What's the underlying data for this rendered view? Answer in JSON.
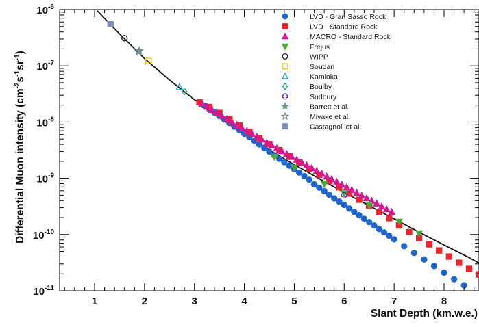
{
  "chart_data": {
    "type": "scatter",
    "title": "",
    "xlabel": "Slant Depth (km.w.e.)",
    "ylabel_parts": {
      "text": "Differential Muon intensity (cm",
      "sup1": "-2",
      "mid": "s",
      "sup2": "-1",
      "mid2": "sr",
      "sup3": "-1",
      "end": ")"
    },
    "xlim": [
      0.3,
      8.7
    ],
    "ylim_log10": [
      -11,
      -6
    ],
    "yscale": "log",
    "grid": false,
    "legend_position": "top-right",
    "x_ticks": [
      1,
      2,
      3,
      4,
      5,
      6,
      7,
      8
    ],
    "y_ticks": [
      {
        "exp": -6,
        "base": "10",
        "sup": "-6"
      },
      {
        "exp": -7,
        "base": "10",
        "sup": "-7"
      },
      {
        "exp": -8,
        "base": "10",
        "sup": "-8"
      },
      {
        "exp": -9,
        "base": "10",
        "sup": "-9"
      },
      {
        "exp": -10,
        "base": "10",
        "sup": "-10"
      },
      {
        "exp": -11,
        "base": "10",
        "sup": "-11"
      }
    ],
    "fit_curve": {
      "x": [
        1.05,
        1.5,
        2.0,
        2.5,
        3.0,
        3.5,
        4.0,
        4.5,
        5.0,
        5.5,
        6.0,
        6.5,
        7.0,
        7.5,
        8.0,
        8.5,
        8.7
      ],
      "y": [
        9.6e-07,
        3.7e-07,
        1.35e-07,
        5.6e-08,
        2.5e-08,
        1.2e-08,
        6e-09,
        3.2e-09,
        1.75e-09,
        9.8e-10,
        5.6e-10,
        3.25e-10,
        1.9e-10,
        1.1e-10,
        6.5e-11,
        3.9e-11,
        3.1e-11
      ]
    },
    "series": [
      {
        "name": "LVD - Gran Sasso Rock",
        "marker": "circle",
        "filled": true,
        "color": "#1f66c8",
        "x": [
          3.2,
          3.3,
          3.4,
          3.5,
          3.6,
          3.7,
          3.8,
          3.9,
          4.0,
          4.1,
          4.2,
          4.3,
          4.4,
          4.5,
          4.6,
          4.7,
          4.8,
          4.9,
          5.0,
          5.1,
          5.2,
          5.3,
          5.4,
          5.5,
          5.6,
          5.7,
          5.8,
          5.9,
          6.0,
          6.1,
          6.2,
          6.3,
          6.4,
          6.5,
          6.6,
          6.7,
          6.8,
          6.9,
          7.0,
          7.2,
          7.4,
          7.6,
          7.8,
          8.0,
          8.2,
          8.4
        ],
        "y": [
          1.95e-08,
          1.7e-08,
          1.48e-08,
          1.28e-08,
          1.11e-08,
          9.6e-09,
          8.3e-09,
          7.2e-09,
          6.2e-09,
          5.4e-09,
          4.65e-09,
          4e-09,
          3.45e-09,
          2.98e-09,
          2.57e-09,
          2.22e-09,
          1.93e-09,
          1.68e-09,
          1.45e-09,
          1.26e-09,
          1.09e-09,
          9.4e-10,
          7.8e-10,
          6.8e-10,
          5.9e-10,
          5.1e-10,
          4.4e-10,
          3.85e-10,
          3.35e-10,
          2.9e-10,
          2.52e-10,
          2.2e-10,
          1.9e-10,
          1.66e-10,
          1.44e-10,
          1.25e-10,
          1.09e-10,
          9.5e-11,
          8.2e-11,
          6.2e-11,
          4.7e-11,
          3.6e-11,
          2.75e-11,
          2.1e-11,
          1.6e-11,
          1.25e-11
        ]
      },
      {
        "name": "LVD - Standard Rock",
        "marker": "square",
        "filled": true,
        "color": "#e8242c",
        "x": [
          3.1,
          3.3,
          3.5,
          3.7,
          3.9,
          4.1,
          4.3,
          4.5,
          4.7,
          4.9,
          5.1,
          5.3,
          5.5,
          5.7,
          5.9,
          6.1,
          6.3,
          6.5,
          6.7,
          6.9,
          7.1,
          7.3,
          7.5,
          7.7,
          7.9,
          8.1,
          8.3,
          8.5,
          8.7
        ],
        "y": [
          2.25e-08,
          1.85e-08,
          1.45e-08,
          1.12e-08,
          8.7e-09,
          6.7e-09,
          5.2e-09,
          4.05e-09,
          3.15e-09,
          2.45e-09,
          1.9e-09,
          1.48e-09,
          1.15e-09,
          8.9e-10,
          6.9e-10,
          5.35e-10,
          4.15e-10,
          3.25e-10,
          2.5e-10,
          1.95e-10,
          1.45e-10,
          1.1e-10,
          8.6e-11,
          6.7e-11,
          5.2e-11,
          4.05e-11,
          3.15e-11,
          2.45e-11,
          1.95e-11
        ]
      },
      {
        "name": "MACRO - Standard Rock",
        "marker": "triangle",
        "filled": true,
        "color": "#d6198f",
        "x": [
          3.15,
          3.25,
          3.35,
          3.45,
          3.55,
          3.65,
          3.75,
          3.85,
          3.95,
          4.05,
          4.15,
          4.25,
          4.35,
          4.45,
          4.55,
          4.65,
          4.75,
          4.85,
          4.95,
          5.05,
          5.15,
          5.25,
          5.35,
          5.45,
          5.55,
          5.65,
          5.75,
          5.85,
          5.95,
          6.05,
          6.15,
          6.25,
          6.35,
          6.45,
          6.55,
          6.65,
          6.75,
          6.85,
          6.95
        ],
        "y": [
          2.1e-08,
          1.86e-08,
          1.64e-08,
          1.45e-08,
          1.28e-08,
          1.13e-08,
          1e-08,
          8.85e-09,
          7.85e-09,
          6.95e-09,
          6.15e-09,
          5.45e-09,
          4.85e-09,
          4.3e-09,
          3.82e-09,
          3.4e-09,
          3.02e-09,
          2.69e-09,
          2.39e-09,
          2.13e-09,
          1.9e-09,
          1.69e-09,
          1.51e-09,
          1.35e-09,
          1.2e-09,
          1.07e-09,
          9.6e-10,
          8.6e-10,
          7.7e-10,
          6.9e-10,
          6.15e-10,
          5.5e-10,
          4.9e-10,
          4.4e-10,
          3.95e-10,
          3.55e-10,
          3.15e-10,
          2.8e-10,
          2.5e-10
        ]
      },
      {
        "name": "Frejus",
        "marker": "triangle-down",
        "filled": true,
        "color": "#4caa3c",
        "x": [
          4.6,
          5.0,
          5.6,
          6.0,
          6.5,
          7.1,
          7.5
        ],
        "y": [
          2.4e-09,
          1.55e-09,
          8e-10,
          5.4e-10,
          3.3e-10,
          1.7e-10,
          1.05e-10
        ]
      },
      {
        "name": "WIPP",
        "marker": "circle",
        "filled": false,
        "color": "#111111",
        "x": [
          1.6
        ],
        "y": [
          3.1e-07
        ]
      },
      {
        "name": "Soudan",
        "marker": "square",
        "filled": false,
        "color": "#e8c400",
        "x": [
          2.08
        ],
        "y": [
          1.22e-07
        ]
      },
      {
        "name": "Kamioka",
        "marker": "triangle",
        "filled": false,
        "color": "#2196d6",
        "x": [
          2.7
        ],
        "y": [
          4.2e-08
        ]
      },
      {
        "name": "Boulby",
        "marker": "diamond",
        "filled": false,
        "color": "#2aa37a",
        "x": [
          2.8
        ],
        "y": [
          3.5e-08
        ]
      },
      {
        "name": "Sudbury",
        "marker": "cross",
        "filled": false,
        "color": "#3a2ca0",
        "x": [
          6.0
        ],
        "y": [
          5e-10
        ]
      },
      {
        "name": "Barrett et al.",
        "marker": "star",
        "filled": true,
        "color": "#6e9b8f",
        "x": [
          1.9
        ],
        "y": [
          1.85e-07
        ]
      },
      {
        "name": "Miyake et al.",
        "marker": "star",
        "filled": false,
        "color": "#7c8a96",
        "x": [
          1.88
        ],
        "y": [
          1.78e-07
        ]
      },
      {
        "name": "Castagnoli et al.",
        "marker": "square",
        "filled": true,
        "color": "#8090b8",
        "x": [
          1.32
        ],
        "y": [
          5.6e-07
        ]
      }
    ]
  }
}
